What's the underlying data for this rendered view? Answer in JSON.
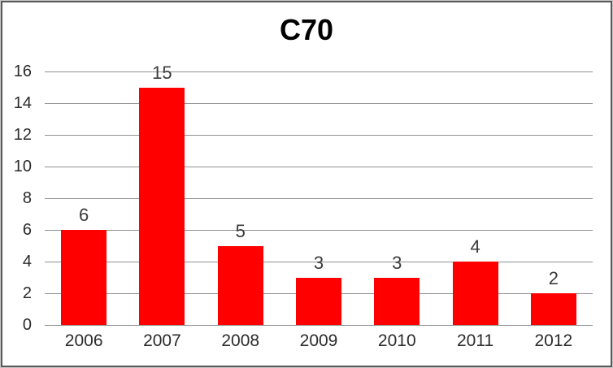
{
  "chart_data": {
    "type": "bar",
    "title": "C70",
    "categories": [
      "2006",
      "2007",
      "2008",
      "2009",
      "2010",
      "2011",
      "2012"
    ],
    "values": [
      6,
      15,
      5,
      3,
      3,
      4,
      2
    ],
    "bar_labels": [
      "6",
      "15",
      "5",
      "3",
      "3",
      "4",
      "2"
    ],
    "xlabel": "",
    "ylabel": "",
    "ylim": [
      0,
      16
    ],
    "yticks": [
      0,
      2,
      4,
      6,
      8,
      10,
      12,
      14,
      16
    ],
    "grid": "horizontal-major",
    "legend": "none",
    "colors": {
      "bar": "#FF0000",
      "gridline": "#909090",
      "title_text": "#000000",
      "axis_text": "#2B2B2B",
      "bar_label_text": "#3A3A3A",
      "frame_border": "#595959",
      "outer_edge": "#C9C9C9",
      "background": "#FFFFFF"
    }
  }
}
